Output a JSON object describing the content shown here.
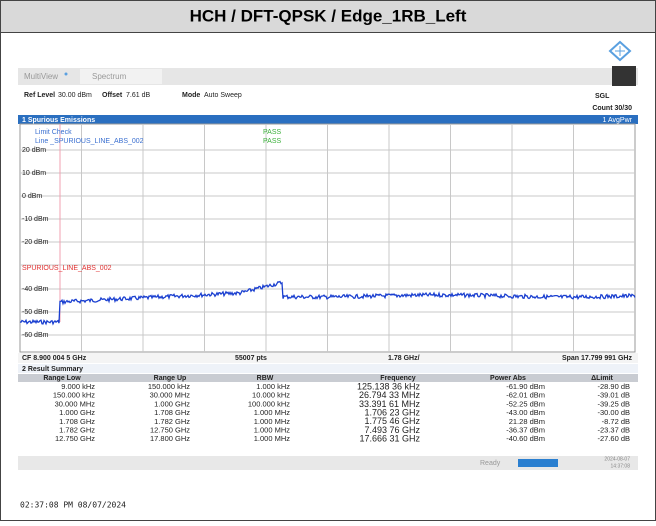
{
  "header": {
    "title": "HCH / DFT-QPSK / Edge_1RB_Left"
  },
  "toolbar": {
    "tabs": [
      "MultiView",
      "Spectrum"
    ],
    "ref_level_label": "Ref Level",
    "ref_level": "30.00 dBm",
    "offset_label": "Offset",
    "offset": "7.61 dB",
    "mode_label": "Mode",
    "mode": "Auto Sweep",
    "sgl": "SGL",
    "count": "Count 30/30"
  },
  "plot": {
    "title": "1 Spurious Emissions",
    "trace_label": "1 AvgPwr",
    "limit_check": "Limit Check",
    "limit_check_result": "PASS",
    "line_name": "Line _SPURIOUS_LINE_ABS_002",
    "line_result": "PASS",
    "limit_line_label": "SPURIOUS_LINE_ABS_002",
    "y_labels": [
      "20 dBm",
      "10 dBm",
      "0 dBm",
      "-10 dBm",
      "-20 dBm",
      "-40 dBm",
      "-50 dBm",
      "-60 dBm"
    ],
    "center": "CF 8.900 004 5 GHz",
    "points": "55007 pts",
    "per_div": "1.78 GHz/",
    "span": "Span 17.799 991 GHz"
  },
  "table": {
    "title": "2 Result Summary",
    "columns": [
      "Range Low",
      "Range Up",
      "RBW",
      "Frequency",
      "Power Abs",
      "ΔLimit"
    ],
    "rows": [
      [
        "9.000 kHz",
        "150.000 kHz",
        "1.000 kHz",
        "125.138 36 kHz",
        "-61.90 dBm",
        "-28.90 dB"
      ],
      [
        "150.000 kHz",
        "30.000 MHz",
        "10.000 kHz",
        "26.794 33 MHz",
        "-62.01 dBm",
        "-39.01 dB"
      ],
      [
        "30.000 MHz",
        "1.000 GHz",
        "100.000 kHz",
        "33.391 61 MHz",
        "-52.25 dBm",
        "-39.25 dB"
      ],
      [
        "1.000 GHz",
        "1.708 GHz",
        "1.000 MHz",
        "1.706 23 GHz",
        "-43.00 dBm",
        "-30.00 dB"
      ],
      [
        "1.708 GHz",
        "1.782 GHz",
        "1.000 MHz",
        "1.775 46 GHz",
        "21.28 dBm",
        "-8.72 dB"
      ],
      [
        "1.782 GHz",
        "12.750 GHz",
        "1.000 MHz",
        "7.493 76 GHz",
        "-36.37 dBm",
        "-23.37 dB"
      ],
      [
        "12.750 GHz",
        "17.800 GHz",
        "1.000 MHz",
        "17.666 31 GHz",
        "-40.60 dBm",
        "-27.60 dB"
      ]
    ]
  },
  "status": {
    "ready": "Ready",
    "date": "2024-08-07",
    "time": "14:37:08"
  },
  "footer": {
    "timestamp": "02:37:08 PM 08/07/2024"
  }
}
